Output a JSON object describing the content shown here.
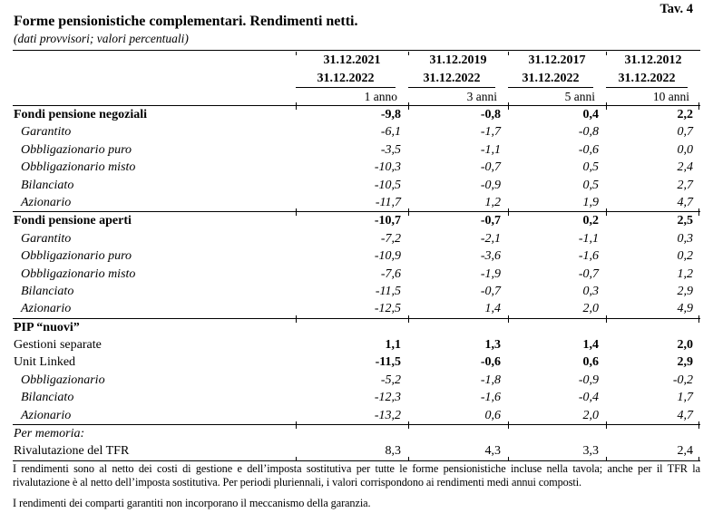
{
  "page": {
    "tav_label": "Tav. 4",
    "title": "Forme pensionistiche complementari. Rendimenti netti.",
    "subtitle": "(dati provvisori; valori percentuali)"
  },
  "table": {
    "column_groups": [
      {
        "date_start": "31.12.2021",
        "date_end": "31.12.2022",
        "period": "1 anno"
      },
      {
        "date_start": "31.12.2019",
        "date_end": "31.12.2022",
        "period": "3 anni"
      },
      {
        "date_start": "31.12.2017",
        "date_end": "31.12.2022",
        "period": "5 anni"
      },
      {
        "date_start": "31.12.2012",
        "date_end": "31.12.2022",
        "period": "10 anni"
      }
    ],
    "rows": [
      {
        "label": "Fondi pensione negoziali",
        "style": "bold",
        "values": [
          "-9,8",
          "-0,8",
          "0,4",
          "2,2"
        ],
        "rule_after": false
      },
      {
        "label": "Garantito",
        "style": "italic",
        "values": [
          "-6,1",
          "-1,7",
          "-0,8",
          "0,7"
        ],
        "rule_after": false
      },
      {
        "label": "Obbligazionario puro",
        "style": "italic",
        "values": [
          "-3,5",
          "-1,1",
          "-0,6",
          "0,0"
        ],
        "rule_after": false
      },
      {
        "label": "Obbligazionario misto",
        "style": "italic",
        "values": [
          "-10,3",
          "-0,7",
          "0,5",
          "2,4"
        ],
        "rule_after": false
      },
      {
        "label": "Bilanciato",
        "style": "italic",
        "values": [
          "-10,5",
          "-0,9",
          "0,5",
          "2,7"
        ],
        "rule_after": false
      },
      {
        "label": "Azionario",
        "style": "italic",
        "values": [
          "-11,7",
          "1,2",
          "1,9",
          "4,7"
        ],
        "rule_after": true
      },
      {
        "label": "Fondi pensione aperti",
        "style": "bold",
        "values": [
          "-10,7",
          "-0,7",
          "0,2",
          "2,5"
        ],
        "rule_after": false
      },
      {
        "label": "Garantito",
        "style": "italic",
        "values": [
          "-7,2",
          "-2,1",
          "-1,1",
          "0,3"
        ],
        "rule_after": false
      },
      {
        "label": "Obbligazionario puro",
        "style": "italic",
        "values": [
          "-10,9",
          "-3,6",
          "-1,6",
          "0,2"
        ],
        "rule_after": false
      },
      {
        "label": "Obbligazionario misto",
        "style": "italic",
        "values": [
          "-7,6",
          "-1,9",
          "-0,7",
          "1,2"
        ],
        "rule_after": false
      },
      {
        "label": "Bilanciato",
        "style": "italic",
        "values": [
          "-11,5",
          "-0,7",
          "0,3",
          "2,9"
        ],
        "rule_after": false
      },
      {
        "label": "Azionario",
        "style": "italic",
        "values": [
          "-12,5",
          "1,4",
          "2,0",
          "4,9"
        ],
        "rule_after": true
      },
      {
        "label": "PIP “nuovi”",
        "style": "bold",
        "values": [
          "",
          "",
          "",
          ""
        ],
        "rule_after": false
      },
      {
        "label": "Gestioni separate",
        "style": "boldvals",
        "values": [
          "1,1",
          "1,3",
          "1,4",
          "2,0"
        ],
        "rule_after": false
      },
      {
        "label": "Unit Linked",
        "style": "boldvals",
        "values": [
          "-11,5",
          "-0,6",
          "0,6",
          "2,9"
        ],
        "rule_after": false
      },
      {
        "label": "Obbligazionario",
        "style": "italic",
        "values": [
          "-5,2",
          "-1,8",
          "-0,9",
          "-0,2"
        ],
        "rule_after": false
      },
      {
        "label": "Bilanciato",
        "style": "italic",
        "values": [
          "-12,3",
          "-1,6",
          "-0,4",
          "1,7"
        ],
        "rule_after": false
      },
      {
        "label": "Azionario",
        "style": "italic",
        "values": [
          "-13,2",
          "0,6",
          "2,0",
          "4,7"
        ],
        "rule_after": true
      },
      {
        "label": "Per memoria:",
        "style": "italic-label",
        "values": [
          "",
          "",
          "",
          ""
        ],
        "rule_after": false
      },
      {
        "label": "Rivalutazione del TFR",
        "style": "plain",
        "values": [
          "8,3",
          "4,3",
          "3,3",
          "2,4"
        ],
        "rule_after": true
      }
    ]
  },
  "footnotes": [
    "I rendimenti sono al netto dei costi di gestione e dell’imposta sostitutiva per tutte le forme pensionistiche incluse nella tavola; anche per il TFR la rivalutazione è al netto dell’imposta sostitutiva. Per periodi pluriennali, i valori corrispondono ai rendimenti medi annui composti.",
    "I rendimenti dei comparti garantiti non incorporano il meccanismo della garanzia."
  ]
}
